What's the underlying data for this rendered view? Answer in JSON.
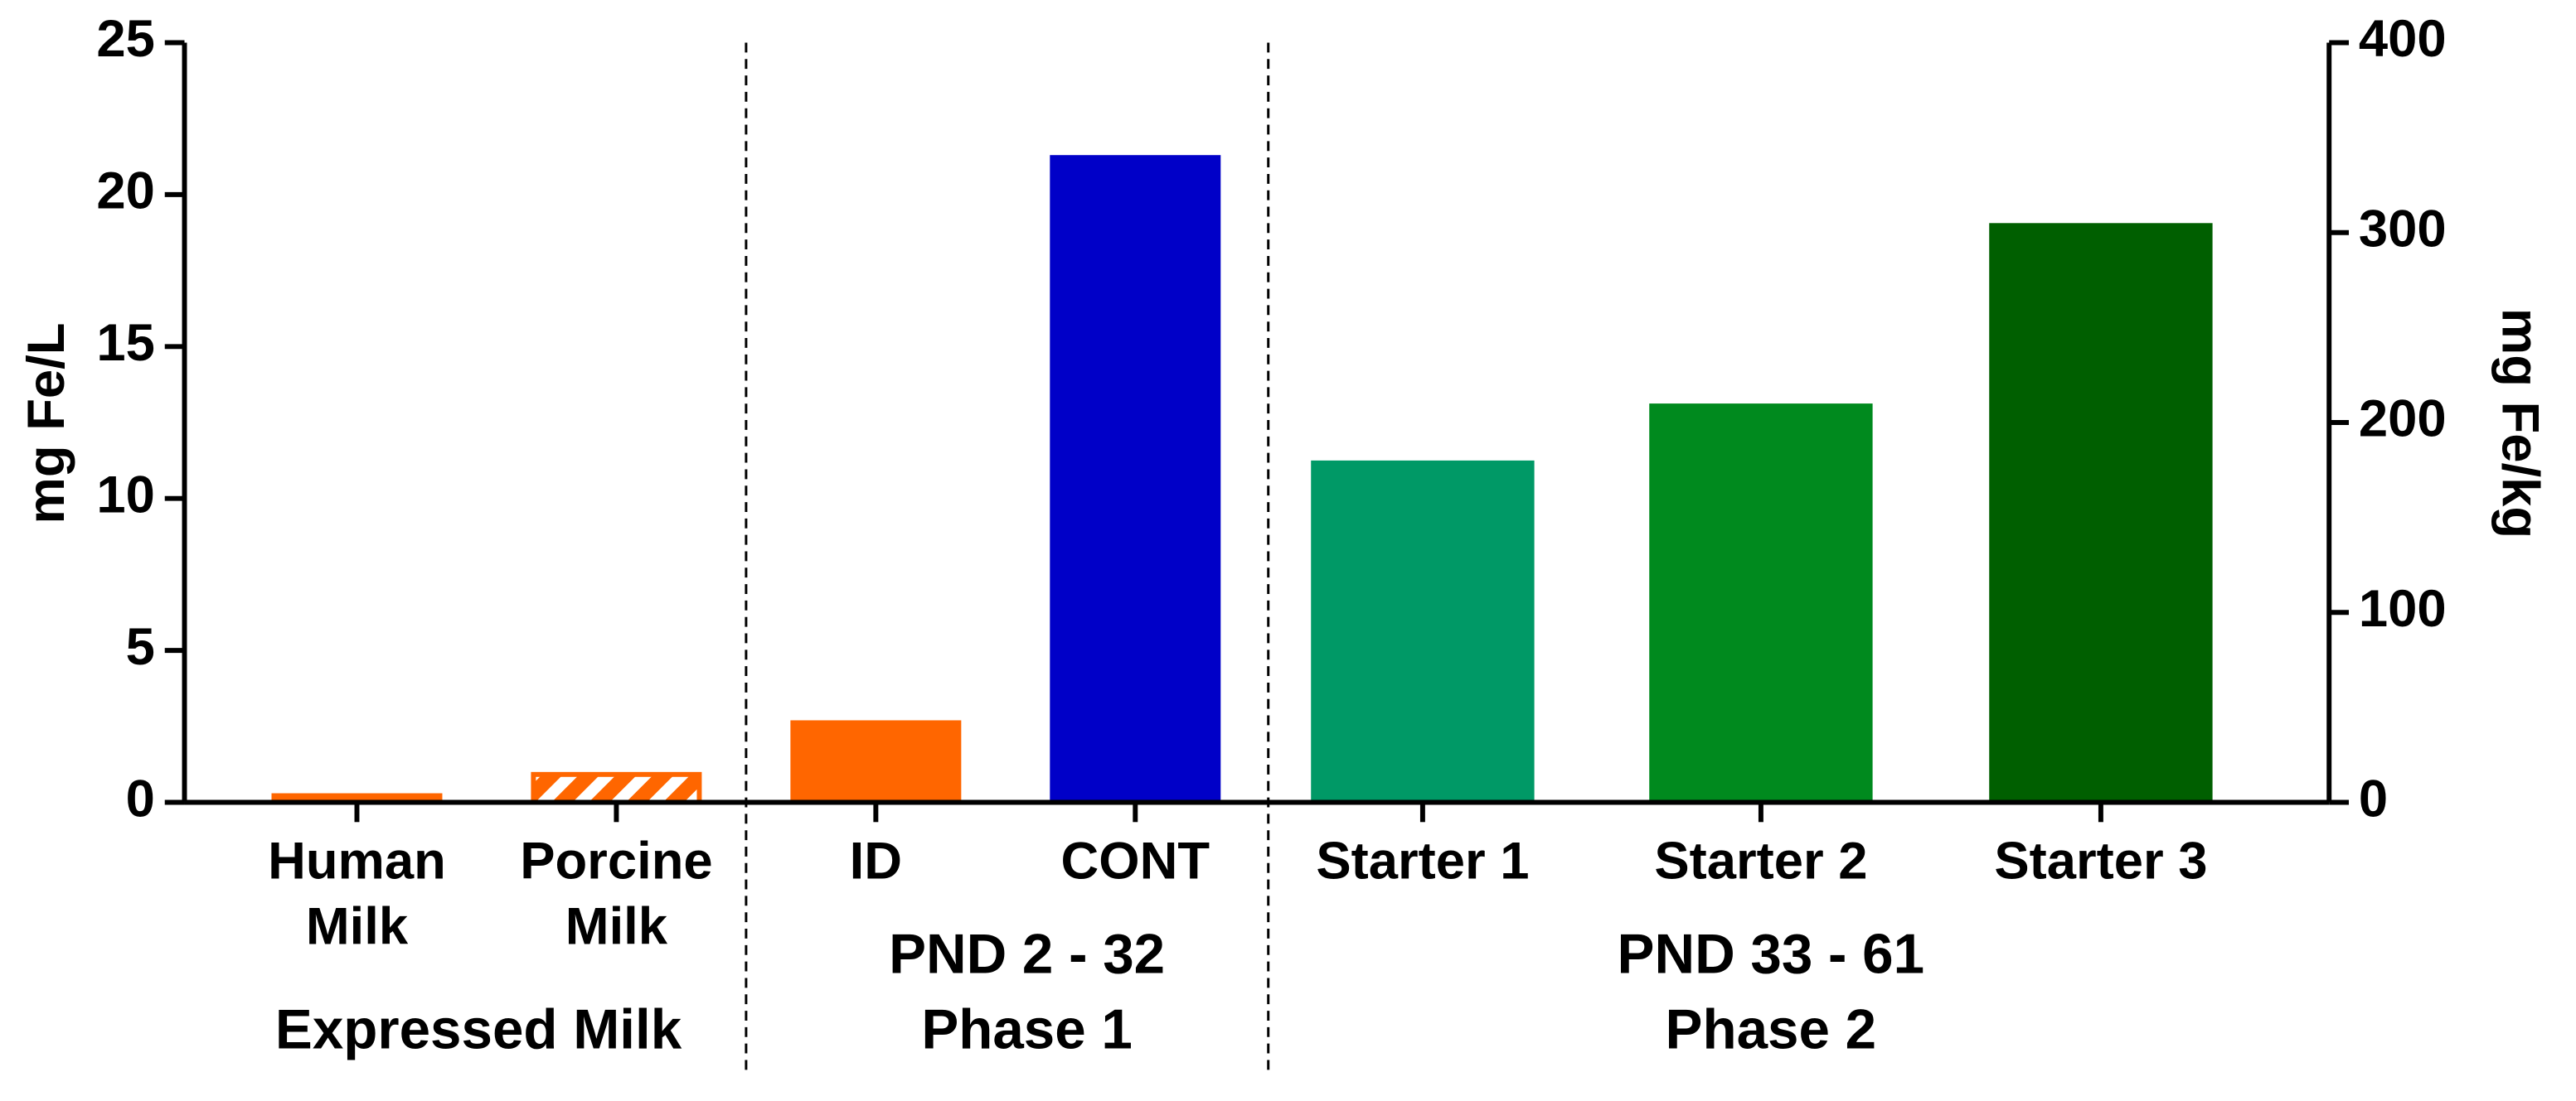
{
  "chart_data": {
    "type": "bar",
    "ylabel": "mg Fe/L",
    "y2label": "mg Fe/kg",
    "ylim": [
      0,
      25
    ],
    "yticks": [
      0,
      5,
      10,
      15,
      20,
      25
    ],
    "y2lim": [
      0,
      400
    ],
    "y2ticks": [
      0,
      100,
      200,
      300,
      400
    ],
    "categories": [
      [
        "Human",
        "Milk"
      ],
      [
        "Porcine",
        "Milk"
      ],
      [
        "ID"
      ],
      [
        "CONT"
      ],
      [
        "Starter 1"
      ],
      [
        "Starter 2"
      ],
      [
        "Starter 3"
      ]
    ],
    "groups": [
      [
        "Expressed Milk"
      ],
      [
        "PND 2 - 32",
        "Phase 1"
      ],
      [
        "PND 33 - 61",
        "Phase 2"
      ]
    ],
    "colors": [
      "#ff6600",
      "#ff6600",
      "#ff6600",
      "#0000c8",
      "#009966",
      "#008a1e",
      "#005f00"
    ],
    "hatched": [
      false,
      true,
      false,
      false,
      false,
      false,
      false
    ],
    "series": [
      {
        "axis": "y",
        "values": [
          0.3,
          1.0,
          2.7,
          21.3,
          null,
          null,
          null
        ]
      },
      {
        "axis": "y2",
        "values": [
          null,
          null,
          null,
          null,
          180,
          210,
          305
        ]
      }
    ]
  }
}
